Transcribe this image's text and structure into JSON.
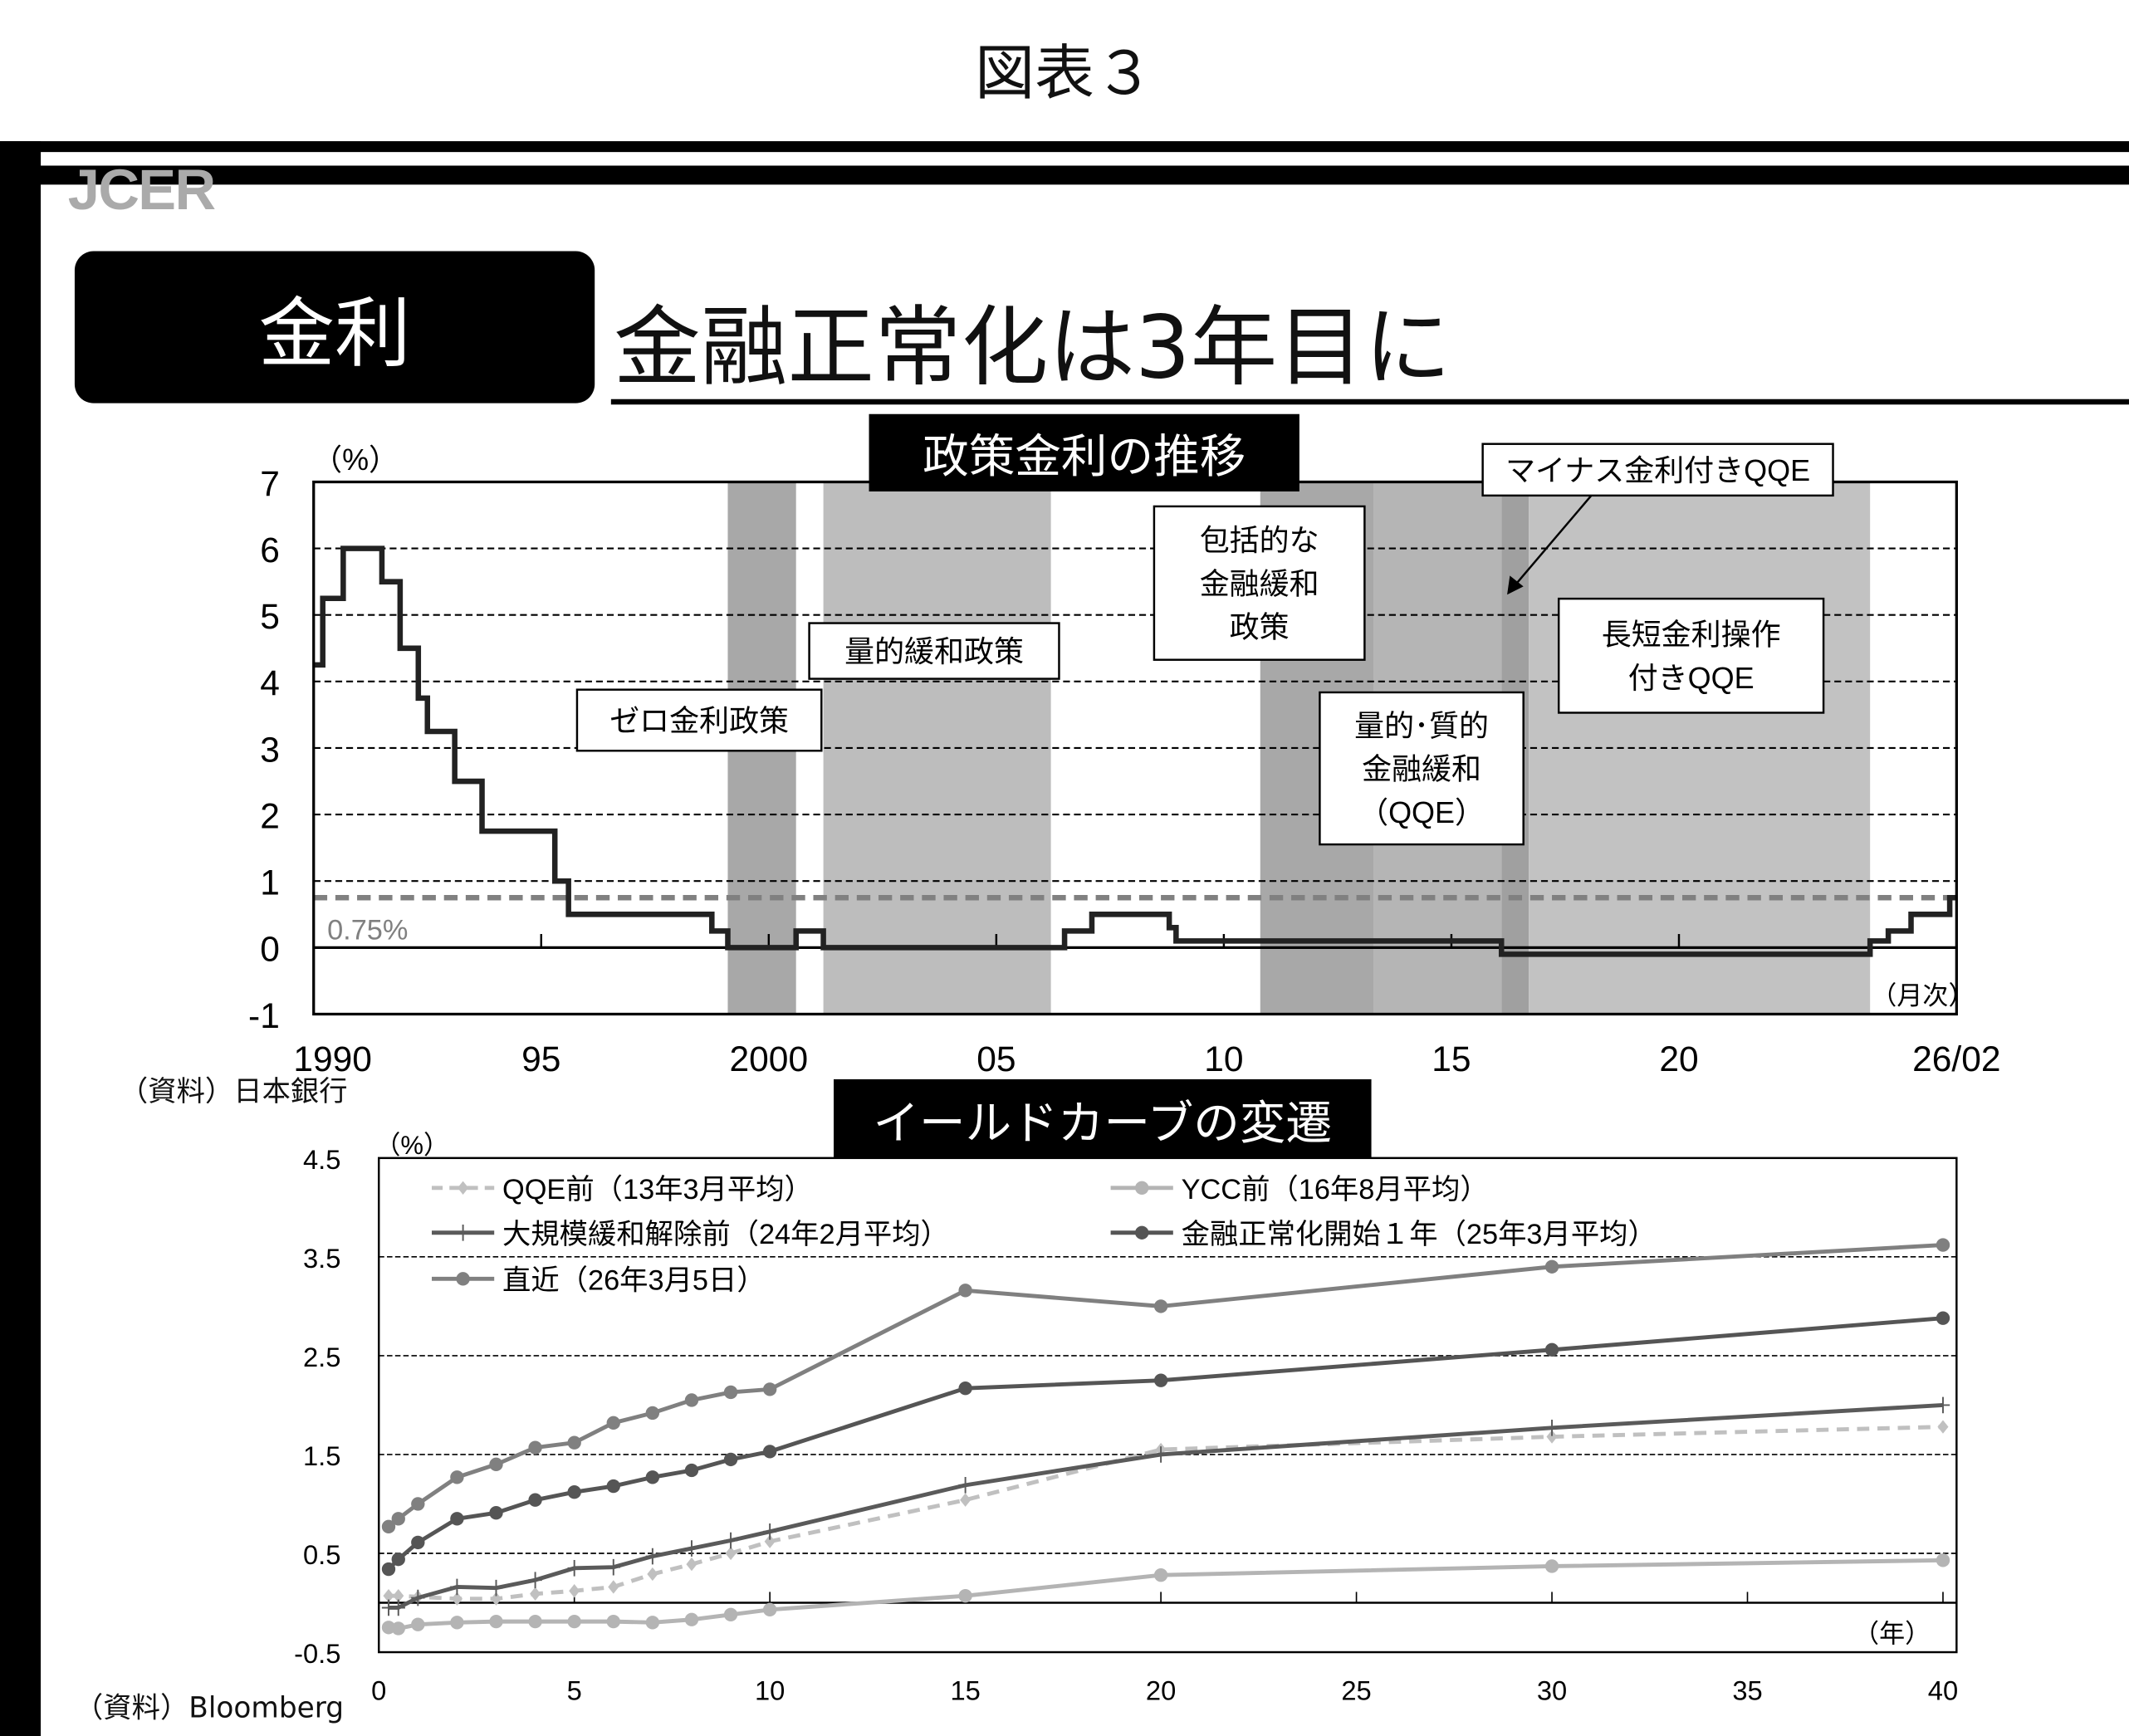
{
  "figure_label": "図表３",
  "logo": "JCER",
  "section": "金利",
  "headline": "金融正常化は3年目に",
  "chart_data": [
    {
      "type": "line",
      "title": "政策金利の推移",
      "ylabel": "（%）",
      "xlabel": "（月次）",
      "ylim": [
        -1,
        7
      ],
      "yticks": [
        "-1",
        "0",
        "1",
        "2",
        "3",
        "4",
        "5",
        "6",
        "7"
      ],
      "xticks": [
        {
          "year": 1990,
          "label": "1990"
        },
        {
          "year": 1995,
          "label": "95"
        },
        {
          "year": 2000,
          "label": "2000"
        },
        {
          "year": 2005,
          "label": "05"
        },
        {
          "year": 2010,
          "label": "10"
        },
        {
          "year": 2015,
          "label": "15"
        },
        {
          "year": 2020,
          "label": "20"
        },
        {
          "year": 2026.1,
          "label": "26/02"
        }
      ],
      "xlim": [
        1990,
        2026.1
      ],
      "grid": true,
      "reference_line": {
        "value": 0.75,
        "label": "0.75%",
        "color": "#808080"
      },
      "series": [
        {
          "color": "#222222",
          "steps": [
            [
              1990.0,
              4.25
            ],
            [
              1990.2,
              5.25
            ],
            [
              1990.65,
              6.0
            ],
            [
              1991.5,
              5.5
            ],
            [
              1991.9,
              4.5
            ],
            [
              1992.3,
              3.75
            ],
            [
              1992.5,
              3.25
            ],
            [
              1993.1,
              2.5
            ],
            [
              1993.7,
              1.75
            ],
            [
              1995.3,
              1.0
            ],
            [
              1995.6,
              0.5
            ],
            [
              1998.75,
              0.25
            ],
            [
              1999.1,
              0.0
            ],
            [
              2000.6,
              0.25
            ],
            [
              2001.2,
              0.0
            ],
            [
              2006.5,
              0.25
            ],
            [
              2007.1,
              0.5
            ],
            [
              2008.8,
              0.3
            ],
            [
              2008.95,
              0.1
            ],
            [
              2016.1,
              -0.1
            ],
            [
              2024.2,
              0.1
            ],
            [
              2024.6,
              0.25
            ],
            [
              2025.1,
              0.5
            ],
            [
              2025.95,
              0.75
            ],
            [
              2026.1,
              0.75
            ]
          ]
        }
      ],
      "shaded_periods": [
        {
          "from": 1999.1,
          "to": 2000.6,
          "color": "#a8a8a8"
        },
        {
          "from": 2001.2,
          "to": 2006.2,
          "color": "#bdbdbd"
        },
        {
          "from": 2010.8,
          "to": 2013.3,
          "color": "#a8a8a8"
        },
        {
          "from": 2013.3,
          "to": 2016.1,
          "color": "#b5b5b5"
        },
        {
          "from": 2016.1,
          "to": 2016.7,
          "color": "#a0a0a0"
        },
        {
          "from": 2016.7,
          "to": 2024.2,
          "color": "#c2c2c2"
        }
      ],
      "annotations": [
        {
          "lines": [
            "ゼロ金利政策"
          ]
        },
        {
          "lines": [
            "量的緩和政策"
          ]
        },
        {
          "lines": [
            "包括的な",
            "金融緩和",
            "政策"
          ]
        },
        {
          "lines": [
            "量的･質的",
            "金融緩和",
            "（QQE）"
          ]
        },
        {
          "lines": [
            "マイナス金利付きQQE"
          ]
        },
        {
          "lines": [
            "長短金利操作",
            "付きQQE"
          ]
        }
      ],
      "source": "（資料）日本銀行"
    },
    {
      "type": "line",
      "title": "イールドカーブの変遷",
      "ylabel": "（%）",
      "xlabel": "（年）",
      "ylim": [
        -0.5,
        4.5
      ],
      "yticks": [
        "-0.5",
        "0.5",
        "1.5",
        "2.5",
        "3.5",
        "4.5"
      ],
      "xlim": [
        0,
        40
      ],
      "xticks": [
        "0",
        "5",
        "10",
        "15",
        "20",
        "25",
        "30",
        "35",
        "40"
      ],
      "grid": true,
      "legend_position": "top-left",
      "x": [
        0.25,
        0.5,
        1,
        2,
        3,
        4,
        5,
        6,
        7,
        8,
        9,
        10,
        15,
        20,
        30,
        40
      ],
      "series": [
        {
          "name": "QQE前（13年3月平均）",
          "color": "#c0c0c0",
          "style": "dashed-diamond",
          "values": [
            0.07,
            0.07,
            0.06,
            0.04,
            0.04,
            0.09,
            0.12,
            0.16,
            0.29,
            0.39,
            0.5,
            0.62,
            1.04,
            1.55,
            1.68,
            1.78
          ]
        },
        {
          "name": "YCC前（16年8月平均）",
          "color": "#b4b4b4",
          "style": "circle",
          "values": [
            -0.25,
            -0.26,
            -0.22,
            -0.2,
            -0.19,
            -0.19,
            -0.19,
            -0.19,
            -0.2,
            -0.17,
            -0.12,
            -0.07,
            0.07,
            0.28,
            0.37,
            0.43
          ]
        },
        {
          "name": "大規模緩和解除前（24年2月平均）",
          "color": "#5a5a5a",
          "style": "plus",
          "values": [
            -0.05,
            -0.05,
            0.05,
            0.16,
            0.15,
            0.23,
            0.35,
            0.36,
            0.47,
            0.55,
            0.63,
            0.72,
            1.19,
            1.5,
            1.77,
            2.0
          ]
        },
        {
          "name": "金融正常化開始１年（25年3月平均）",
          "color": "#555555",
          "style": "circle",
          "values": [
            0.34,
            0.44,
            0.61,
            0.85,
            0.91,
            1.04,
            1.12,
            1.18,
            1.27,
            1.34,
            1.45,
            1.53,
            2.17,
            2.25,
            2.56,
            2.88
          ]
        },
        {
          "name": "直近（26年3月5日）",
          "color": "#808080",
          "style": "circle",
          "values": [
            0.77,
            0.85,
            1.0,
            1.27,
            1.4,
            1.57,
            1.62,
            1.82,
            1.92,
            2.05,
            2.13,
            2.16,
            3.16,
            3.0,
            3.4,
            3.62
          ]
        }
      ],
      "source": "（資料）Bloomberg"
    }
  ]
}
